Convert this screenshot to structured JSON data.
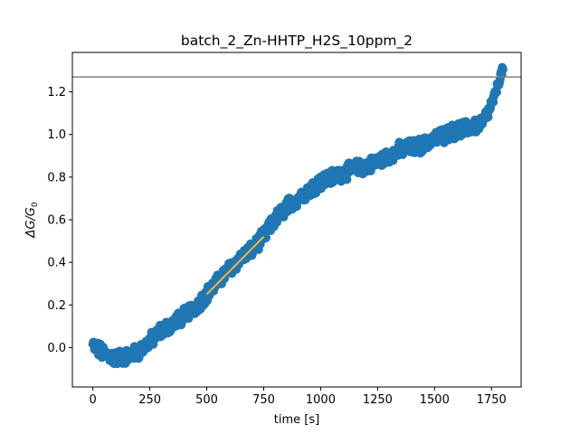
{
  "chart_data": {
    "type": "scatter",
    "title": "batch_2_Zn-HHTP_H2S_10ppm_2",
    "xlabel": "time [s]",
    "ylabel_main": "ΔG/G",
    "ylabel_sub": "0",
    "xlim": [
      -90,
      1880
    ],
    "ylim": [
      -0.185,
      1.385
    ],
    "x_ticks": [
      "0",
      "250",
      "500",
      "750",
      "1000",
      "1250",
      "1500",
      "1750"
    ],
    "x_tick_values": [
      0,
      250,
      500,
      750,
      1000,
      1250,
      1500,
      1750
    ],
    "y_ticks": [
      "0.0",
      "0.2",
      "0.4",
      "0.6",
      "0.8",
      "1.0",
      "1.2"
    ],
    "y_tick_values": [
      0.0,
      0.2,
      0.4,
      0.6,
      0.8,
      1.0,
      1.2
    ],
    "grid": false,
    "series": [
      {
        "kind": "scatter",
        "color": "#1f77b4",
        "trend": [
          [
            0,
            0.01
          ],
          [
            50,
            -0.03
          ],
          [
            100,
            -0.05
          ],
          [
            150,
            -0.04
          ],
          [
            200,
            -0.02
          ],
          [
            250,
            0.03
          ],
          [
            300,
            0.08
          ],
          [
            350,
            0.11
          ],
          [
            400,
            0.15
          ],
          [
            450,
            0.19
          ],
          [
            500,
            0.25
          ],
          [
            550,
            0.31
          ],
          [
            600,
            0.37
          ],
          [
            650,
            0.42
          ],
          [
            700,
            0.46
          ],
          [
            750,
            0.52
          ],
          [
            800,
            0.6
          ],
          [
            850,
            0.66
          ],
          [
            900,
            0.7
          ],
          [
            950,
            0.74
          ],
          [
            1000,
            0.78
          ],
          [
            1050,
            0.8
          ],
          [
            1100,
            0.82
          ],
          [
            1150,
            0.84
          ],
          [
            1200,
            0.85
          ],
          [
            1250,
            0.87
          ],
          [
            1300,
            0.9
          ],
          [
            1350,
            0.93
          ],
          [
            1400,
            0.94
          ],
          [
            1450,
            0.95
          ],
          [
            1500,
            0.98
          ],
          [
            1550,
            1.0
          ],
          [
            1600,
            1.02
          ],
          [
            1650,
            1.03
          ],
          [
            1700,
            1.05
          ],
          [
            1720,
            1.07
          ],
          [
            1740,
            1.11
          ],
          [
            1760,
            1.17
          ],
          [
            1780,
            1.24
          ],
          [
            1800,
            1.31
          ]
        ],
        "noise": 0.03
      },
      {
        "kind": "fit_line",
        "color": "#ffb52a",
        "x": [
          500,
          750
        ],
        "y": [
          0.25,
          0.52
        ]
      },
      {
        "kind": "hline",
        "color": "#808080",
        "y": 1.27
      }
    ]
  }
}
